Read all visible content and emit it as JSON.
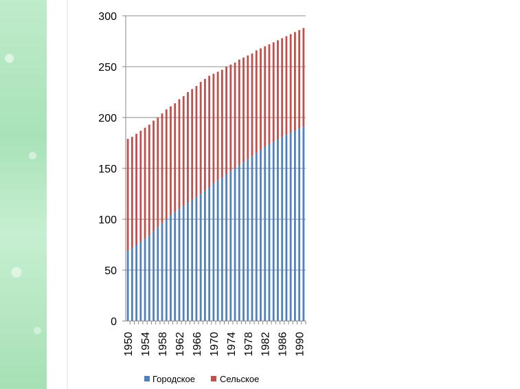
{
  "chart_data": {
    "type": "bar",
    "stacked": true,
    "ylim": [
      0,
      300
    ],
    "yticks": [
      0,
      50,
      100,
      150,
      200,
      250,
      300
    ],
    "grid": true,
    "legend_position": "bottom",
    "categories": [
      1950,
      1951,
      1952,
      1953,
      1954,
      1955,
      1956,
      1957,
      1958,
      1959,
      1960,
      1961,
      1962,
      1963,
      1964,
      1965,
      1966,
      1967,
      1968,
      1969,
      1970,
      1971,
      1972,
      1973,
      1974,
      1975,
      1976,
      1977,
      1978,
      1979,
      1980,
      1981,
      1982,
      1983,
      1984,
      1985,
      1986,
      1987,
      1988,
      1989,
      1990,
      1991
    ],
    "xtick_labels": [
      "1950",
      "1954",
      "1958",
      "1962",
      "1966",
      "1970",
      "1974",
      "1978",
      "1982",
      "1986",
      "1990"
    ],
    "series": [
      {
        "name": "Городское",
        "color": "#4f81bd",
        "values": [
          69,
          72,
          75,
          78,
          81,
          84,
          88,
          92,
          96,
          100,
          104,
          107,
          110,
          113,
          116,
          119,
          122,
          125,
          128,
          131,
          135,
          138,
          141,
          144,
          147,
          150,
          153,
          156,
          159,
          162,
          165,
          168,
          171,
          174,
          176,
          178,
          181,
          183,
          185,
          187,
          189,
          191
        ]
      },
      {
        "name": "Сельское",
        "color": "#c0504d",
        "values": [
          110,
          109,
          109,
          109,
          109,
          109,
          109,
          108,
          108,
          108,
          107,
          107,
          108,
          108,
          109,
          109,
          109,
          110,
          110,
          110,
          108,
          107,
          106,
          106,
          105,
          104,
          104,
          103,
          102,
          101,
          101,
          100,
          99,
          98,
          98,
          98,
          97,
          97,
          97,
          97,
          97,
          97
        ]
      }
    ]
  }
}
